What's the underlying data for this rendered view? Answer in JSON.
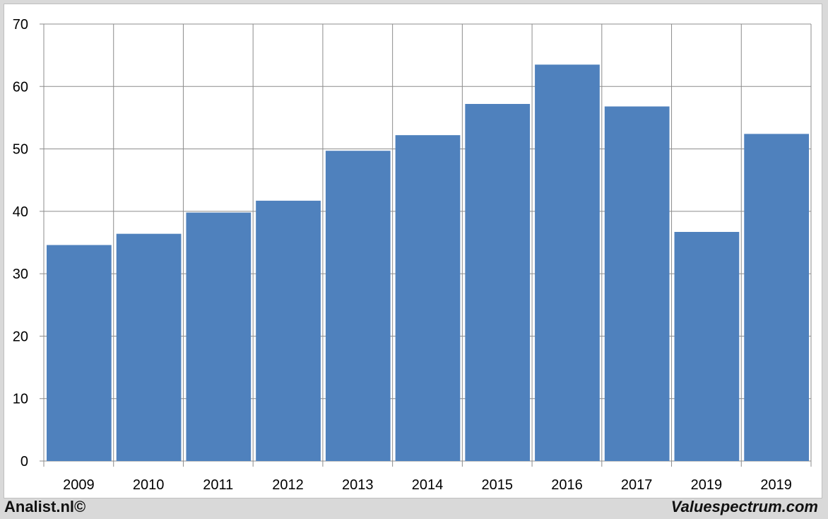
{
  "chart_data": {
    "type": "bar",
    "categories": [
      "2009",
      "2010",
      "2011",
      "2012",
      "2013",
      "2014",
      "2015",
      "2016",
      "2017",
      "2019",
      "2019"
    ],
    "values": [
      34.6,
      36.4,
      39.8,
      41.7,
      49.7,
      52.2,
      57.2,
      63.5,
      56.8,
      36.7,
      52.4
    ],
    "title": "",
    "xlabel": "",
    "ylabel": "",
    "ylim": [
      0,
      70
    ],
    "yticks": [
      "0",
      "10",
      "20",
      "30",
      "40",
      "50",
      "60",
      "70"
    ],
    "grid": true,
    "legend": "none",
    "bar_color": "#4f81bd"
  },
  "footer": {
    "left_text": "Analist.nl©",
    "right_text": "Valuespectrum.com"
  }
}
